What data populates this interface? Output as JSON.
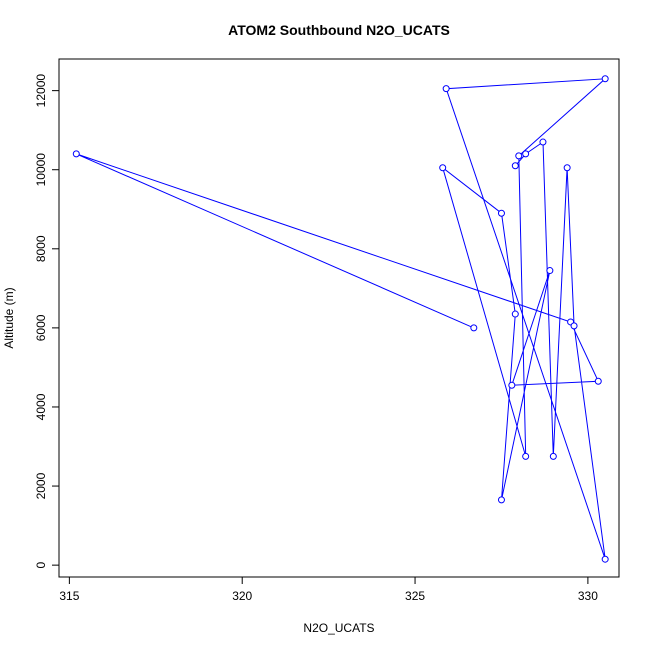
{
  "chart_data": {
    "type": "line",
    "title": "ATOM2 Southbound N2O_UCATS",
    "xlabel": "N2O_UCATS",
    "ylabel": "Altitude (m)",
    "xlim": [
      314.7,
      330.9
    ],
    "ylim": [
      -300,
      12800
    ],
    "x_ticks": [
      315,
      320,
      325,
      330
    ],
    "y_ticks": [
      0,
      2000,
      4000,
      6000,
      8000,
      10000,
      12000
    ],
    "grid": false,
    "line_color": "#0000ff",
    "marker": "open-circle",
    "series": [
      {
        "x": [
          326.7,
          315.2,
          329.5,
          330.3,
          327.8,
          328.9,
          327.5,
          327.9,
          327.5,
          325.8,
          328.2,
          328.0,
          330.5,
          325.9,
          330.5,
          329.6,
          329.4,
          329.0,
          328.7,
          328.2,
          327.9
        ],
        "y": [
          6000,
          10400,
          6150,
          4650,
          4550,
          7450,
          1650,
          6350,
          8900,
          10050,
          2750,
          10350,
          12300,
          12050,
          150,
          6050,
          10050,
          2750,
          10700,
          10400,
          10100
        ]
      }
    ]
  }
}
